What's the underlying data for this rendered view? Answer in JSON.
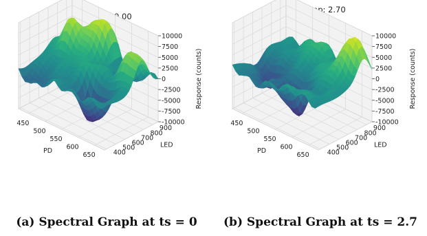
{
  "chart_data": [
    {
      "type": "surface3d",
      "title": "Timestamp:  0.00",
      "caption": "(a) Spectral Graph at ts = 0",
      "xlabel": "PD",
      "ylabel": "LED",
      "zlabel": "Response (counts)",
      "x_ticks": [
        450,
        500,
        550,
        600,
        650
      ],
      "y_ticks": [
        400,
        500,
        600,
        700,
        800,
        900
      ],
      "z_ticks": [
        10000,
        7500,
        5000,
        2500,
        0,
        -2500,
        -5000,
        -7500,
        -10000
      ],
      "xlim": [
        420,
        680
      ],
      "ylim": [
        380,
        960
      ],
      "zlim": [
        -10000,
        10000
      ],
      "colormap": "viridis",
      "peaks": [
        {
          "pd": 470,
          "led": 780,
          "response": 7500
        },
        {
          "pd": 530,
          "led": 900,
          "response": 9500
        },
        {
          "pd": 660,
          "led": 780,
          "response": 8000
        },
        {
          "pd": 600,
          "led": 540,
          "response": -9000
        },
        {
          "pd": 460,
          "led": 430,
          "response": -3500
        },
        {
          "pd": 600,
          "led": 880,
          "response": -4000
        },
        {
          "pd": 560,
          "led": 650,
          "response": 3000
        }
      ]
    },
    {
      "type": "surface3d",
      "title": "Timestamp:  2.70",
      "caption": "(b) Spectral Graph at ts = 2.7",
      "xlabel": "PD",
      "ylabel": "LED",
      "zlabel": "Response (counts)",
      "x_ticks": [
        450,
        500,
        550,
        600,
        650
      ],
      "y_ticks": [
        400,
        500,
        600,
        700,
        800,
        900
      ],
      "z_ticks": [
        10000,
        7500,
        5000,
        2500,
        0,
        -2500,
        -5000,
        -7500,
        -10000
      ],
      "xlim": [
        420,
        680
      ],
      "ylim": [
        380,
        960
      ],
      "zlim": [
        -10000,
        10000
      ],
      "colormap": "viridis",
      "peaks": [
        {
          "pd": 650,
          "led": 870,
          "response": 9500
        },
        {
          "pd": 530,
          "led": 900,
          "response": 4000
        },
        {
          "pd": 460,
          "led": 640,
          "response": -6000
        },
        {
          "pd": 560,
          "led": 560,
          "response": -8500
        },
        {
          "pd": 620,
          "led": 720,
          "response": 3000
        },
        {
          "pd": 480,
          "led": 460,
          "response": -3000
        },
        {
          "pd": 600,
          "led": 440,
          "response": 1500
        }
      ]
    }
  ]
}
